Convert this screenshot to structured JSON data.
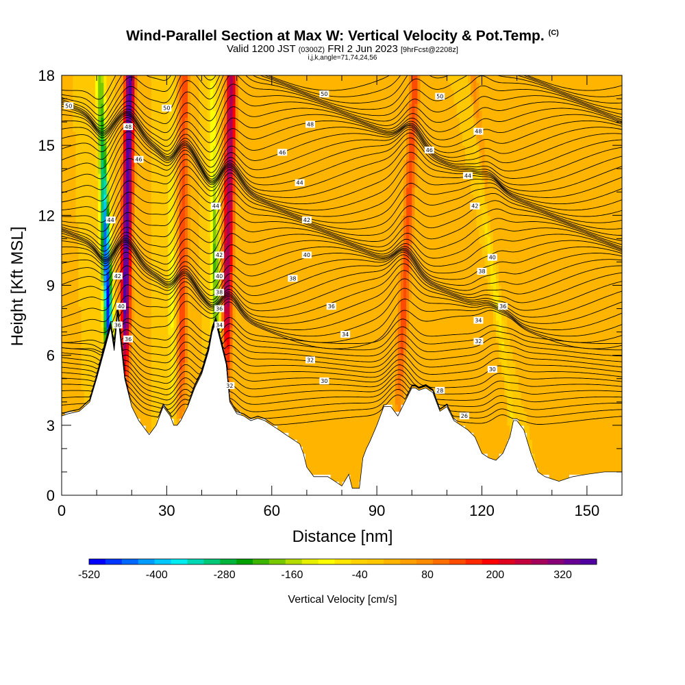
{
  "title": {
    "main": "Wind-Parallel Section at Max W: Vertical Velocity & Pot.Temp.",
    "mark": "(C)",
    "valid_prefix": "Valid 1200 JST",
    "utc": "(0300Z)",
    "date": "FRI 2 Jun 2023",
    "forecast": "[9hrFcst@2208z]",
    "indices": "i,j,k,angle=71,74,24,56"
  },
  "chart_data": {
    "type": "heatmap",
    "xlabel": "Distance [nm]",
    "ylabel": "Height [Kft MSL]",
    "xlim": [
      0,
      160
    ],
    "ylim": [
      0,
      18
    ],
    "x_ticks": [
      0,
      30,
      60,
      90,
      120,
      150
    ],
    "y_ticks": [
      0,
      3,
      6,
      9,
      12,
      15,
      18
    ],
    "field_filled": "Vertical Velocity [cm/s]",
    "field_contoured": "Potential Temperature",
    "colorbar": {
      "label": "Vertical Velocity [cm/s]",
      "tick_labels": [
        "-520",
        "-400",
        "-280",
        "-160",
        "-40",
        "80",
        "200",
        "320"
      ],
      "tick_values": [
        -520,
        -400,
        -280,
        -160,
        -40,
        80,
        200,
        320
      ],
      "bins": [
        -520,
        -490,
        -460,
        -430,
        -400,
        -370,
        -340,
        -310,
        -280,
        -250,
        -220,
        -190,
        -160,
        -130,
        -100,
        -70,
        -40,
        -10,
        20,
        50,
        80,
        110,
        140,
        170,
        200,
        230,
        260,
        290,
        320,
        350,
        380
      ],
      "colors": [
        "#0000ff",
        "#0034ff",
        "#0068ff",
        "#009cff",
        "#00c8ff",
        "#00ecf0",
        "#00d8b4",
        "#00c878",
        "#00b43c",
        "#00a000",
        "#3cb400",
        "#78c800",
        "#b4dc00",
        "#e6f000",
        "#ffff00",
        "#ffe600",
        "#ffd200",
        "#ffc800",
        "#ffb400",
        "#ffa000",
        "#ff8c00",
        "#ff6e00",
        "#ff4b00",
        "#ff2800",
        "#ff0000",
        "#e1001e",
        "#c3003c",
        "#a5005a",
        "#870078",
        "#690096",
        "#5000a0"
      ]
    },
    "updrafts": [
      {
        "x_bottom": 17,
        "x_top": 19.5,
        "peak_cm_s": 380
      },
      {
        "x_bottom": 34,
        "x_top": 35,
        "peak_cm_s": 150
      },
      {
        "x_bottom": 46,
        "x_top": 48.5,
        "peak_cm_s": 300
      },
      {
        "x_bottom": 95,
        "x_top": 101,
        "peak_cm_s": 140
      },
      {
        "x_bottom": 130,
        "x_top": 117,
        "peak_cm_s": 100
      }
    ],
    "downdrafts": [
      {
        "x_bottom": 15,
        "x_top": 11,
        "min_cm_s": -520
      },
      {
        "x_bottom": 32,
        "x_top": 31,
        "min_cm_s": -100
      },
      {
        "x_bottom": 45,
        "x_top": 43,
        "min_cm_s": -230
      },
      {
        "x_bottom": 131,
        "x_top": 116,
        "min_cm_s": -180
      }
    ],
    "terrain": {
      "x": [
        0,
        2,
        5,
        8,
        10,
        14,
        15,
        16,
        17,
        18,
        20,
        22,
        23,
        24,
        25,
        27,
        29,
        31,
        32,
        33,
        34,
        36,
        38,
        40,
        42,
        43,
        44,
        46,
        47,
        48,
        50,
        52,
        54,
        56,
        58,
        60,
        62,
        64,
        66,
        68,
        69,
        70,
        72,
        74,
        76,
        78,
        80,
        82,
        83,
        84,
        85,
        86,
        87,
        88,
        90,
        92,
        94,
        96,
        98,
        100,
        101,
        102,
        104,
        106,
        108,
        110,
        112,
        114,
        116,
        118,
        120,
        122,
        124,
        126,
        128,
        129,
        130,
        132,
        134,
        136,
        138,
        140,
        142,
        146,
        150,
        155,
        160
      ],
      "height_kft": [
        3.4,
        3.5,
        3.6,
        4.0,
        5.0,
        7.2,
        6.2,
        7.8,
        6.4,
        5.0,
        3.8,
        3.2,
        3.0,
        2.8,
        2.6,
        3.0,
        3.8,
        3.4,
        3.0,
        3.0,
        3.2,
        3.8,
        4.6,
        5.2,
        6.2,
        7.0,
        7.4,
        6.2,
        5.6,
        4.0,
        3.5,
        3.4,
        3.2,
        3.3,
        3.2,
        3.0,
        2.8,
        2.6,
        2.4,
        2.2,
        1.8,
        1.2,
        0.8,
        0.8,
        0.8,
        0.6,
        0.4,
        0.9,
        0.3,
        0.3,
        0.3,
        1.6,
        2.0,
        2.3,
        3.0,
        3.8,
        3.8,
        3.4,
        4.0,
        4.6,
        4.6,
        4.5,
        4.6,
        4.4,
        3.6,
        3.8,
        3.2,
        3.0,
        2.8,
        2.5,
        1.8,
        1.6,
        1.5,
        1.8,
        2.5,
        3.2,
        3.2,
        2.8,
        1.8,
        1.0,
        0.8,
        0.7,
        0.6,
        0.8,
        0.9,
        1.0,
        1.0
      ]
    },
    "theta_contour_labels": [
      {
        "x": 2,
        "y": 16.7,
        "text": "50"
      },
      {
        "x": 30,
        "y": 16.6,
        "text": "50"
      },
      {
        "x": 75,
        "y": 17.2,
        "text": "50"
      },
      {
        "x": 108,
        "y": 17.1,
        "text": "50"
      },
      {
        "x": 19,
        "y": 15.8,
        "text": "48"
      },
      {
        "x": 71,
        "y": 15.9,
        "text": "48"
      },
      {
        "x": 119,
        "y": 15.6,
        "text": "48"
      },
      {
        "x": 22,
        "y": 14.4,
        "text": "46"
      },
      {
        "x": 63,
        "y": 14.7,
        "text": "46"
      },
      {
        "x": 105,
        "y": 14.8,
        "text": "46"
      },
      {
        "x": 68,
        "y": 13.4,
        "text": "44"
      },
      {
        "x": 116,
        "y": 13.7,
        "text": "44"
      },
      {
        "x": 44,
        "y": 12.4,
        "text": "44"
      },
      {
        "x": 14,
        "y": 11.8,
        "text": "44"
      },
      {
        "x": 70,
        "y": 11.8,
        "text": "42"
      },
      {
        "x": 118,
        "y": 12.4,
        "text": "42"
      },
      {
        "x": 45,
        "y": 10.3,
        "text": "42"
      },
      {
        "x": 16,
        "y": 9.4,
        "text": "42"
      },
      {
        "x": 70,
        "y": 10.3,
        "text": "40"
      },
      {
        "x": 123,
        "y": 10.2,
        "text": "40"
      },
      {
        "x": 45,
        "y": 9.4,
        "text": "40"
      },
      {
        "x": 17,
        "y": 8.1,
        "text": "40"
      },
      {
        "x": 66,
        "y": 9.3,
        "text": "38"
      },
      {
        "x": 120,
        "y": 9.6,
        "text": "38"
      },
      {
        "x": 45,
        "y": 8.7,
        "text": "38"
      },
      {
        "x": 77,
        "y": 8.1,
        "text": "36"
      },
      {
        "x": 126,
        "y": 8.1,
        "text": "36"
      },
      {
        "x": 45,
        "y": 8.0,
        "text": "36"
      },
      {
        "x": 16,
        "y": 7.3,
        "text": "36"
      },
      {
        "x": 119,
        "y": 7.5,
        "text": "34"
      },
      {
        "x": 81,
        "y": 6.9,
        "text": "34"
      },
      {
        "x": 45,
        "y": 7.3,
        "text": "34"
      },
      {
        "x": 19,
        "y": 6.7,
        "text": "36"
      },
      {
        "x": 119,
        "y": 6.6,
        "text": "32"
      },
      {
        "x": 71,
        "y": 5.8,
        "text": "32"
      },
      {
        "x": 48,
        "y": 4.7,
        "text": "32"
      },
      {
        "x": 123,
        "y": 5.4,
        "text": "30"
      },
      {
        "x": 75,
        "y": 4.9,
        "text": "30"
      },
      {
        "x": 108,
        "y": 4.5,
        "text": "28"
      },
      {
        "x": 115,
        "y": 3.4,
        "text": "26"
      }
    ]
  }
}
